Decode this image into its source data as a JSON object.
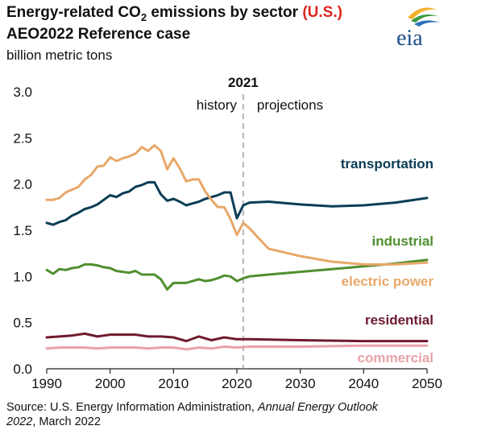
{
  "header": {
    "title_pre": "Energy-related CO",
    "title_sub": "2",
    "title_post": " emissions by sector ",
    "title_region": "(U.S.)",
    "line2": "AEO2022 Reference case",
    "units": "billion metric tons",
    "logo_text": "eia"
  },
  "source": {
    "prefix": "Source: U.S. Energy Information Administration, ",
    "publication": "Annual Energy Outlook 2022",
    "suffix": ", March 2022"
  },
  "colors": {
    "transportation": "#0b3d56",
    "industrial": "#4f8f2f",
    "electric_power": "#e8a86a",
    "residential": "#6e1a2e",
    "commercial": "#e8a2a8",
    "divider": "#9a9a9a"
  },
  "chart_data": {
    "type": "line",
    "title": "Energy-related CO2 emissions by sector (U.S.)",
    "ylabel": "billion metric tons",
    "xlim": [
      1990,
      2050
    ],
    "ylim": [
      0,
      3.0
    ],
    "xticks": [
      "1990",
      "2000",
      "2010",
      "2020",
      "2030",
      "2040",
      "2050"
    ],
    "yticks": [
      "0.0",
      "0.5",
      "1.0",
      "1.5",
      "2.0",
      "2.5",
      "3.0"
    ],
    "grid": false,
    "divider": {
      "x": 2021,
      "label": "2021",
      "left_label": "history",
      "right_label": "projections"
    },
    "series": [
      {
        "name": "transportation",
        "color": "#0b3d56",
        "x": [
          1990,
          1991,
          1992,
          1993,
          1994,
          1995,
          1996,
          1997,
          1998,
          1999,
          2000,
          2001,
          2002,
          2003,
          2004,
          2005,
          2006,
          2007,
          2008,
          2009,
          2010,
          2011,
          2012,
          2013,
          2014,
          2015,
          2016,
          2017,
          2018,
          2019,
          2020,
          2021,
          2022,
          2025,
          2030,
          2035,
          2040,
          2045,
          2050
        ],
        "y": [
          1.58,
          1.56,
          1.59,
          1.61,
          1.66,
          1.69,
          1.73,
          1.75,
          1.78,
          1.83,
          1.88,
          1.86,
          1.9,
          1.92,
          1.97,
          1.99,
          2.02,
          2.02,
          1.89,
          1.82,
          1.84,
          1.81,
          1.77,
          1.79,
          1.81,
          1.84,
          1.86,
          1.88,
          1.91,
          1.91,
          1.63,
          1.77,
          1.8,
          1.81,
          1.78,
          1.76,
          1.77,
          1.8,
          1.85
        ]
      },
      {
        "name": "industrial",
        "color": "#4f8f2f",
        "x": [
          1990,
          1991,
          1992,
          1993,
          1994,
          1995,
          1996,
          1997,
          1998,
          1999,
          2000,
          2001,
          2002,
          2003,
          2004,
          2005,
          2006,
          2007,
          2008,
          2009,
          2010,
          2011,
          2012,
          2013,
          2014,
          2015,
          2016,
          2017,
          2018,
          2019,
          2020,
          2021,
          2022,
          2025,
          2030,
          2035,
          2040,
          2045,
          2050
        ],
        "y": [
          1.07,
          1.03,
          1.08,
          1.07,
          1.09,
          1.1,
          1.13,
          1.13,
          1.12,
          1.1,
          1.09,
          1.06,
          1.05,
          1.04,
          1.06,
          1.02,
          1.02,
          1.02,
          0.97,
          0.86,
          0.93,
          0.93,
          0.93,
          0.95,
          0.97,
          0.95,
          0.96,
          0.98,
          1.01,
          1.0,
          0.95,
          0.98,
          1.0,
          1.02,
          1.05,
          1.08,
          1.11,
          1.14,
          1.18
        ]
      },
      {
        "name": "electric power",
        "color": "#e8a86a",
        "x": [
          1990,
          1991,
          1992,
          1993,
          1994,
          1995,
          1996,
          1997,
          1998,
          1999,
          2000,
          2001,
          2002,
          2003,
          2004,
          2005,
          2006,
          2007,
          2008,
          2009,
          2010,
          2011,
          2012,
          2013,
          2014,
          2015,
          2016,
          2017,
          2018,
          2019,
          2020,
          2021,
          2022,
          2025,
          2030,
          2035,
          2040,
          2045,
          2050
        ],
        "y": [
          1.83,
          1.83,
          1.85,
          1.91,
          1.94,
          1.97,
          2.05,
          2.1,
          2.19,
          2.2,
          2.29,
          2.25,
          2.28,
          2.3,
          2.33,
          2.4,
          2.36,
          2.42,
          2.36,
          2.16,
          2.28,
          2.17,
          2.03,
          2.05,
          2.05,
          1.92,
          1.83,
          1.75,
          1.75,
          1.62,
          1.45,
          1.58,
          1.52,
          1.3,
          1.22,
          1.16,
          1.13,
          1.13,
          1.15
        ]
      },
      {
        "name": "residential",
        "color": "#6e1a2e",
        "x": [
          1990,
          1992,
          1994,
          1996,
          1998,
          2000,
          2002,
          2004,
          2006,
          2008,
          2010,
          2012,
          2014,
          2016,
          2018,
          2020,
          2022,
          2030,
          2040,
          2050
        ],
        "y": [
          0.34,
          0.35,
          0.36,
          0.38,
          0.35,
          0.37,
          0.37,
          0.37,
          0.35,
          0.35,
          0.34,
          0.3,
          0.35,
          0.31,
          0.34,
          0.32,
          0.32,
          0.31,
          0.3,
          0.3
        ]
      },
      {
        "name": "commercial",
        "color": "#e8a2a8",
        "x": [
          1990,
          1992,
          1994,
          1996,
          1998,
          2000,
          2002,
          2004,
          2006,
          2008,
          2010,
          2012,
          2014,
          2016,
          2018,
          2020,
          2022,
          2030,
          2040,
          2050
        ],
        "y": [
          0.22,
          0.23,
          0.23,
          0.23,
          0.22,
          0.23,
          0.23,
          0.23,
          0.22,
          0.23,
          0.23,
          0.21,
          0.23,
          0.22,
          0.24,
          0.23,
          0.24,
          0.24,
          0.25,
          0.25
        ]
      }
    ],
    "series_labels": [
      "transportation",
      "industrial",
      "electric power",
      "residential",
      "commercial"
    ]
  }
}
